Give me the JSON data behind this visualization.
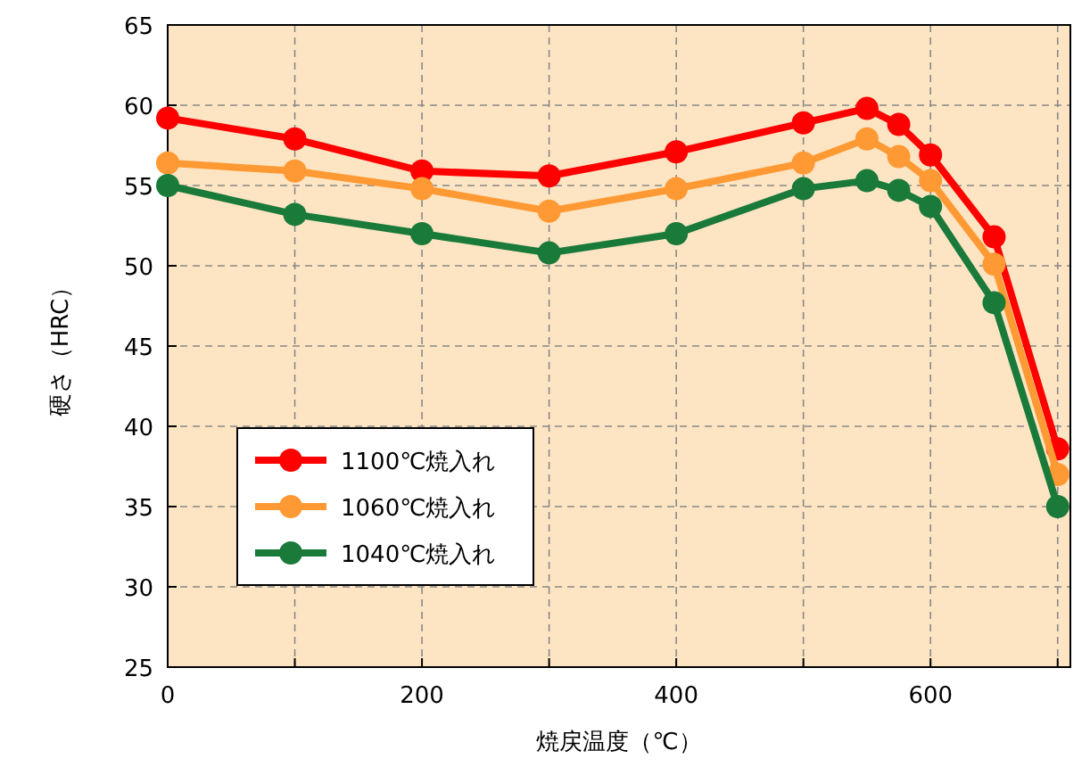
{
  "chart_data": {
    "type": "line",
    "xlabel": "焼戻温度（℃）",
    "ylabel": "硬さ（HRC）",
    "xlim": [
      0,
      710
    ],
    "ylim": [
      25,
      65
    ],
    "xticks": [
      0,
      {
        "value": 100,
        "label": null
      },
      200,
      {
        "value": 300,
        "label": null
      },
      400,
      {
        "value": 500,
        "label": null
      },
      600,
      {
        "value": 700,
        "label": null
      }
    ],
    "yticks": [
      25,
      30,
      35,
      40,
      45,
      50,
      55,
      60,
      65
    ],
    "grid": true,
    "legend": "left",
    "marker": "circle",
    "line_style": "solid",
    "series": [
      {
        "name": "1100℃焼入れ",
        "color": "#ff0000",
        "x": [
          0,
          100,
          200,
          300,
          400,
          500,
          550,
          575,
          600,
          650,
          700
        ],
        "values": [
          59.2,
          57.9,
          55.9,
          55.6,
          57.1,
          58.9,
          59.8,
          58.8,
          56.9,
          51.8,
          38.6
        ]
      },
      {
        "name": "1060℃焼入れ",
        "color": "#ff9933",
        "x": [
          0,
          100,
          200,
          300,
          400,
          500,
          550,
          575,
          600,
          650,
          700
        ],
        "values": [
          56.4,
          55.9,
          54.8,
          53.4,
          54.8,
          56.4,
          57.9,
          56.8,
          55.3,
          50.1,
          37.0
        ]
      },
      {
        "name": "1040℃焼入れ",
        "color": "#1a7a3a",
        "x": [
          0,
          100,
          200,
          300,
          400,
          500,
          550,
          575,
          600,
          650,
          700
        ],
        "values": [
          55.0,
          53.2,
          52.0,
          50.8,
          52.0,
          54.8,
          55.3,
          54.7,
          53.7,
          47.7,
          35.0
        ]
      }
    ]
  }
}
